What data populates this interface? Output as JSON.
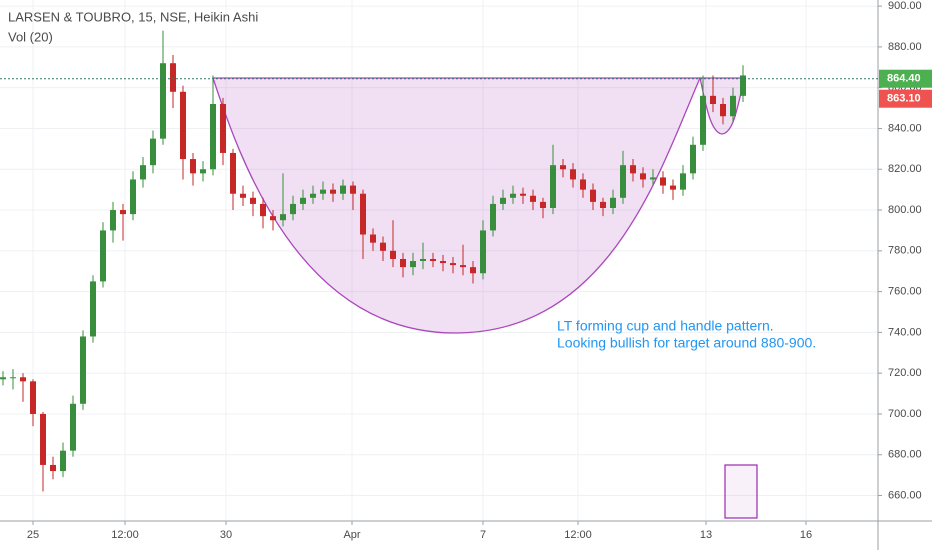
{
  "chart_data": {
    "type": "candlestick",
    "title": "LARSEN & TOUBRO, 15, NSE, Heikin Ashi",
    "subtitle": "Vol (20)",
    "annotation": [
      "LT forming cup and handle pattern.",
      "Looking bullish for target around 880-900."
    ],
    "up_color": "#388e3c",
    "down_color": "#c62828",
    "grid": true,
    "xlim": [
      -0.3,
      87.5
    ],
    "xticks": [
      {
        "value": 3,
        "label": "25"
      },
      {
        "value": 12.2,
        "label": "12:00"
      },
      {
        "value": 22.3,
        "label": "30"
      },
      {
        "value": 34.9,
        "label": "Apr"
      },
      {
        "value": 48,
        "label": "7"
      },
      {
        "value": 57.5,
        "label": "12:00"
      },
      {
        "value": 70.3,
        "label": "13"
      },
      {
        "value": 80.3,
        "label": "16"
      }
    ],
    "ylim": [
      648,
      903
    ],
    "yticks": [
      {
        "value": 660,
        "label": "660.00"
      },
      {
        "value": 680,
        "label": "680.00"
      },
      {
        "value": 700,
        "label": "700.00"
      },
      {
        "value": 720,
        "label": "720.00"
      },
      {
        "value": 740,
        "label": "740.00"
      },
      {
        "value": 760,
        "label": "760.00"
      },
      {
        "value": 780,
        "label": "780.00"
      },
      {
        "value": 800,
        "label": "800.00"
      },
      {
        "value": 820,
        "label": "820.00"
      },
      {
        "value": 840,
        "label": "840.00"
      },
      {
        "value": 860,
        "label": "860.00"
      },
      {
        "value": 880,
        "label": "880.00"
      },
      {
        "value": 900,
        "label": "900.00"
      }
    ],
    "price_markers": [
      {
        "value": 864.4,
        "label": "864.40",
        "color": "#4caf50"
      },
      {
        "value": 863.1,
        "label": "863.10",
        "color": "#ef5350"
      }
    ],
    "candles": [
      [
        717,
        721,
        714,
        718
      ],
      [
        718,
        722,
        712,
        718
      ],
      [
        718,
        720,
        706,
        716
      ],
      [
        716,
        717,
        694,
        700
      ],
      [
        700,
        701,
        662,
        675
      ],
      [
        675,
        679,
        668,
        672
      ],
      [
        672,
        686,
        669,
        682
      ],
      [
        682,
        709,
        679,
        705
      ],
      [
        705,
        741,
        702,
        738
      ],
      [
        738,
        768,
        735,
        765
      ],
      [
        765,
        794,
        762,
        790
      ],
      [
        790,
        804,
        784,
        800
      ],
      [
        800,
        803,
        785,
        798
      ],
      [
        798,
        819,
        795,
        815
      ],
      [
        815,
        826,
        811,
        822
      ],
      [
        822,
        839,
        818,
        835
      ],
      [
        835,
        888,
        832,
        872
      ],
      [
        872,
        876,
        850,
        858
      ],
      [
        858,
        861,
        815,
        825
      ],
      [
        825,
        828,
        812,
        818
      ],
      [
        818,
        824,
        814,
        820
      ],
      [
        820,
        866,
        817,
        852
      ],
      [
        852,
        855,
        822,
        828
      ],
      [
        828,
        830,
        800,
        808
      ],
      [
        808,
        812,
        802,
        806
      ],
      [
        806,
        809,
        797,
        803
      ],
      [
        803,
        806,
        791,
        797
      ],
      [
        797,
        800,
        790,
        795
      ],
      [
        795,
        818,
        792,
        798
      ],
      [
        798,
        807,
        795,
        803
      ],
      [
        803,
        810,
        800,
        806
      ],
      [
        806,
        812,
        803,
        808
      ],
      [
        808,
        814,
        805,
        810
      ],
      [
        810,
        813,
        804,
        808
      ],
      [
        808,
        815,
        805,
        812
      ],
      [
        812,
        814,
        800,
        808
      ],
      [
        808,
        810,
        776,
        788
      ],
      [
        788,
        791,
        780,
        784
      ],
      [
        784,
        787,
        775,
        780
      ],
      [
        780,
        795,
        772,
        776
      ],
      [
        776,
        779,
        767,
        772
      ],
      [
        772,
        779,
        768,
        775
      ],
      [
        775,
        784,
        771,
        776
      ],
      [
        776,
        779,
        772,
        775
      ],
      [
        775,
        778,
        770,
        774
      ],
      [
        774,
        777,
        769,
        773
      ],
      [
        773,
        783,
        768,
        772
      ],
      [
        772,
        775,
        764,
        769
      ],
      [
        769,
        795,
        766,
        790
      ],
      [
        790,
        807,
        787,
        803
      ],
      [
        803,
        810,
        800,
        806
      ],
      [
        806,
        812,
        803,
        808
      ],
      [
        808,
        811,
        803,
        807
      ],
      [
        807,
        810,
        800,
        804
      ],
      [
        804,
        806,
        796,
        801
      ],
      [
        801,
        832,
        798,
        822
      ],
      [
        822,
        825,
        816,
        820
      ],
      [
        820,
        823,
        811,
        815
      ],
      [
        815,
        818,
        806,
        810
      ],
      [
        810,
        813,
        800,
        804
      ],
      [
        804,
        806,
        797,
        801
      ],
      [
        801,
        810,
        798,
        806
      ],
      [
        806,
        829,
        803,
        822
      ],
      [
        822,
        825,
        814,
        818
      ],
      [
        818,
        821,
        811,
        815
      ],
      [
        815,
        820,
        812,
        816
      ],
      [
        816,
        819,
        808,
        812
      ],
      [
        812,
        815,
        805,
        810
      ],
      [
        810,
        822,
        807,
        818
      ],
      [
        818,
        836,
        815,
        832
      ],
      [
        832,
        866,
        829,
        856
      ],
      [
        856,
        866,
        848,
        852
      ],
      [
        852,
        855,
        842,
        846
      ],
      [
        846,
        860,
        843,
        856
      ],
      [
        856,
        871,
        853,
        866
      ]
    ]
  }
}
